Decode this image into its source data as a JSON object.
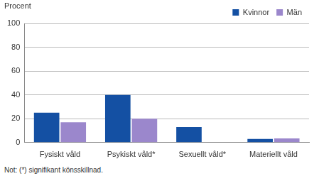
{
  "chart_data": {
    "type": "bar",
    "y_label": "Procent",
    "note": "Not: (*) signifikant könsskillnad.",
    "categories": [
      "Fysiskt våld",
      "Psykiskt våld*",
      "Sexuellt våld*",
      "Materiellt våld"
    ],
    "series": [
      {
        "name": "Kvinnor",
        "color": "#1450a3",
        "values": [
          25,
          40,
          13,
          3
        ]
      },
      {
        "name": "Män",
        "color": "#9b87cc",
        "values": [
          17,
          20,
          0,
          3.5
        ]
      }
    ],
    "ylim": [
      0,
      100
    ],
    "yticks": [
      0,
      20,
      40,
      60,
      80,
      100
    ],
    "grid": true,
    "legend": "upper right"
  }
}
